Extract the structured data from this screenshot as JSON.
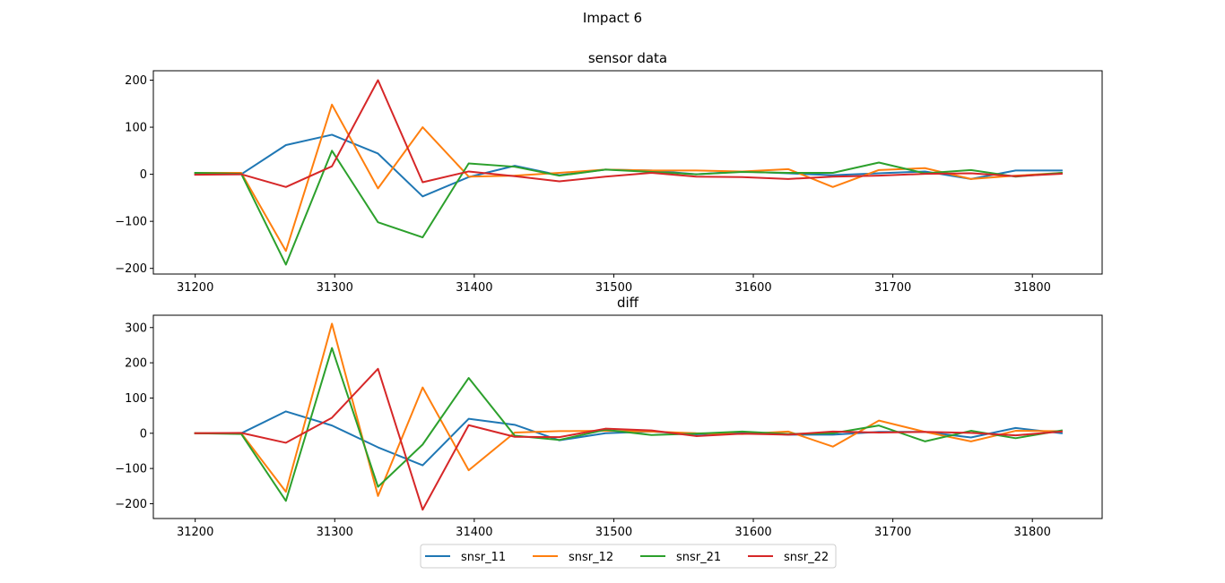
{
  "figure": {
    "suptitle": "Impact 6"
  },
  "colors": {
    "snsr_11": "#1f77b4",
    "snsr_12": "#ff7f0e",
    "snsr_21": "#2ca02c",
    "snsr_22": "#d62728"
  },
  "chart_data": [
    {
      "type": "line",
      "title": "sensor data",
      "xlabel": "",
      "ylabel": "",
      "xlim": [
        31170,
        31850
      ],
      "ylim": [
        -212,
        220
      ],
      "xticks": [
        31200,
        31300,
        31400,
        31500,
        31600,
        31700,
        31800
      ],
      "yticks": [
        -200,
        -100,
        0,
        100,
        200
      ],
      "grid": false,
      "x": [
        31200,
        31233,
        31265,
        31298,
        31331,
        31363,
        31396,
        31429,
        31461,
        31494,
        31527,
        31559,
        31592,
        31625,
        31657,
        31690,
        31723,
        31756,
        31788,
        31821
      ],
      "series": [
        {
          "name": "snsr_11",
          "values": [
            0,
            0,
            62,
            84,
            44,
            -47,
            -6,
            18,
            -2,
            10,
            8,
            0,
            6,
            2,
            -2,
            2,
            6,
            -10,
            8,
            8
          ]
        },
        {
          "name": "snsr_12",
          "values": [
            3,
            3,
            -163,
            148,
            -30,
            100,
            -5,
            -3,
            3,
            10,
            8,
            8,
            6,
            11,
            -27,
            9,
            13,
            -10,
            -3,
            3
          ]
        },
        {
          "name": "snsr_21",
          "values": [
            3,
            1,
            -192,
            50,
            -102,
            -134,
            23,
            16,
            -3,
            10,
            5,
            0,
            5,
            3,
            3,
            25,
            2,
            9,
            -5,
            3
          ]
        },
        {
          "name": "snsr_22",
          "values": [
            -1,
            0,
            -27,
            17,
            200,
            -17,
            6,
            -4,
            -15,
            -5,
            3,
            -5,
            -6,
            -10,
            -5,
            -3,
            1,
            2,
            -4,
            1
          ]
        }
      ]
    },
    {
      "type": "line",
      "title": "diff",
      "xlabel": "",
      "ylabel": "",
      "xlim": [
        31170,
        31850
      ],
      "ylim": [
        -242,
        335
      ],
      "xticks": [
        31200,
        31300,
        31400,
        31500,
        31600,
        31700,
        31800
      ],
      "yticks": [
        -200,
        -100,
        0,
        100,
        200,
        300
      ],
      "grid": false,
      "x": [
        31200,
        31233,
        31265,
        31298,
        31331,
        31363,
        31396,
        31429,
        31461,
        31494,
        31527,
        31559,
        31592,
        31625,
        31657,
        31690,
        31723,
        31756,
        31788,
        31821
      ],
      "series": [
        {
          "name": "snsr_11",
          "values": [
            0,
            0,
            62,
            22,
            -40,
            -91,
            41,
            24,
            -20,
            0,
            5,
            -3,
            3,
            -4,
            -4,
            4,
            4,
            -12,
            15,
            0
          ]
        },
        {
          "name": "snsr_12",
          "values": [
            0,
            0,
            -166,
            311,
            -178,
            130,
            -105,
            2,
            6,
            7,
            5,
            0,
            -2,
            5,
            -38,
            36,
            4,
            -23,
            7,
            6
          ]
        },
        {
          "name": "snsr_21",
          "values": [
            0,
            -2,
            -192,
            242,
            -152,
            -32,
            157,
            -7,
            -19,
            10,
            -5,
            -1,
            5,
            -2,
            0,
            22,
            -23,
            7,
            -14,
            8
          ]
        },
        {
          "name": "snsr_22",
          "values": [
            0,
            1,
            -27,
            44,
            183,
            -217,
            23,
            -10,
            -11,
            13,
            8,
            -8,
            -1,
            -4,
            5,
            2,
            4,
            1,
            -6,
            5
          ]
        }
      ]
    }
  ],
  "legend": {
    "placement": "bottom-center",
    "ncol": 4,
    "entries": [
      "snsr_11",
      "snsr_12",
      "snsr_21",
      "snsr_22"
    ]
  }
}
